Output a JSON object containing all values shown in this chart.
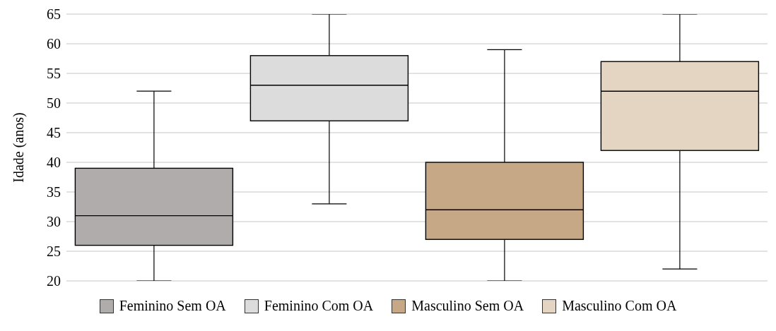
{
  "chart_data": {
    "type": "box",
    "ylabel": "Idade (anos)",
    "categories": [
      null,
      null,
      null,
      null
    ],
    "series": [
      {
        "name": "Feminino Sem OA",
        "color": "#b0acab",
        "boxes": [
          {
            "low": 20,
            "q1": 26,
            "median": 31,
            "q3": 39,
            "high": 52
          },
          null,
          null,
          null
        ]
      },
      {
        "name": "Feminino Com OA",
        "color": "#dcdcdc",
        "boxes": [
          null,
          {
            "low": 33,
            "q1": 47,
            "median": 53,
            "q3": 58,
            "high": 65
          },
          null,
          null
        ]
      },
      {
        "name": "Masculino Sem OA",
        "color": "#c6a886",
        "boxes": [
          null,
          null,
          {
            "low": 20,
            "q1": 27,
            "median": 32,
            "q3": 40,
            "high": 59
          },
          null
        ]
      },
      {
        "name": "Masculino Com OA",
        "color": "#e3d5c2",
        "boxes": [
          null,
          null,
          null,
          {
            "low": 22,
            "q1": 42,
            "median": 52,
            "q3": 57,
            "high": 65
          }
        ]
      }
    ],
    "ylim": [
      20,
      65
    ],
    "yticks": [
      20,
      25,
      30,
      35,
      40,
      45,
      50,
      55,
      60,
      65
    ],
    "grid": "y",
    "legend": "bottom"
  }
}
